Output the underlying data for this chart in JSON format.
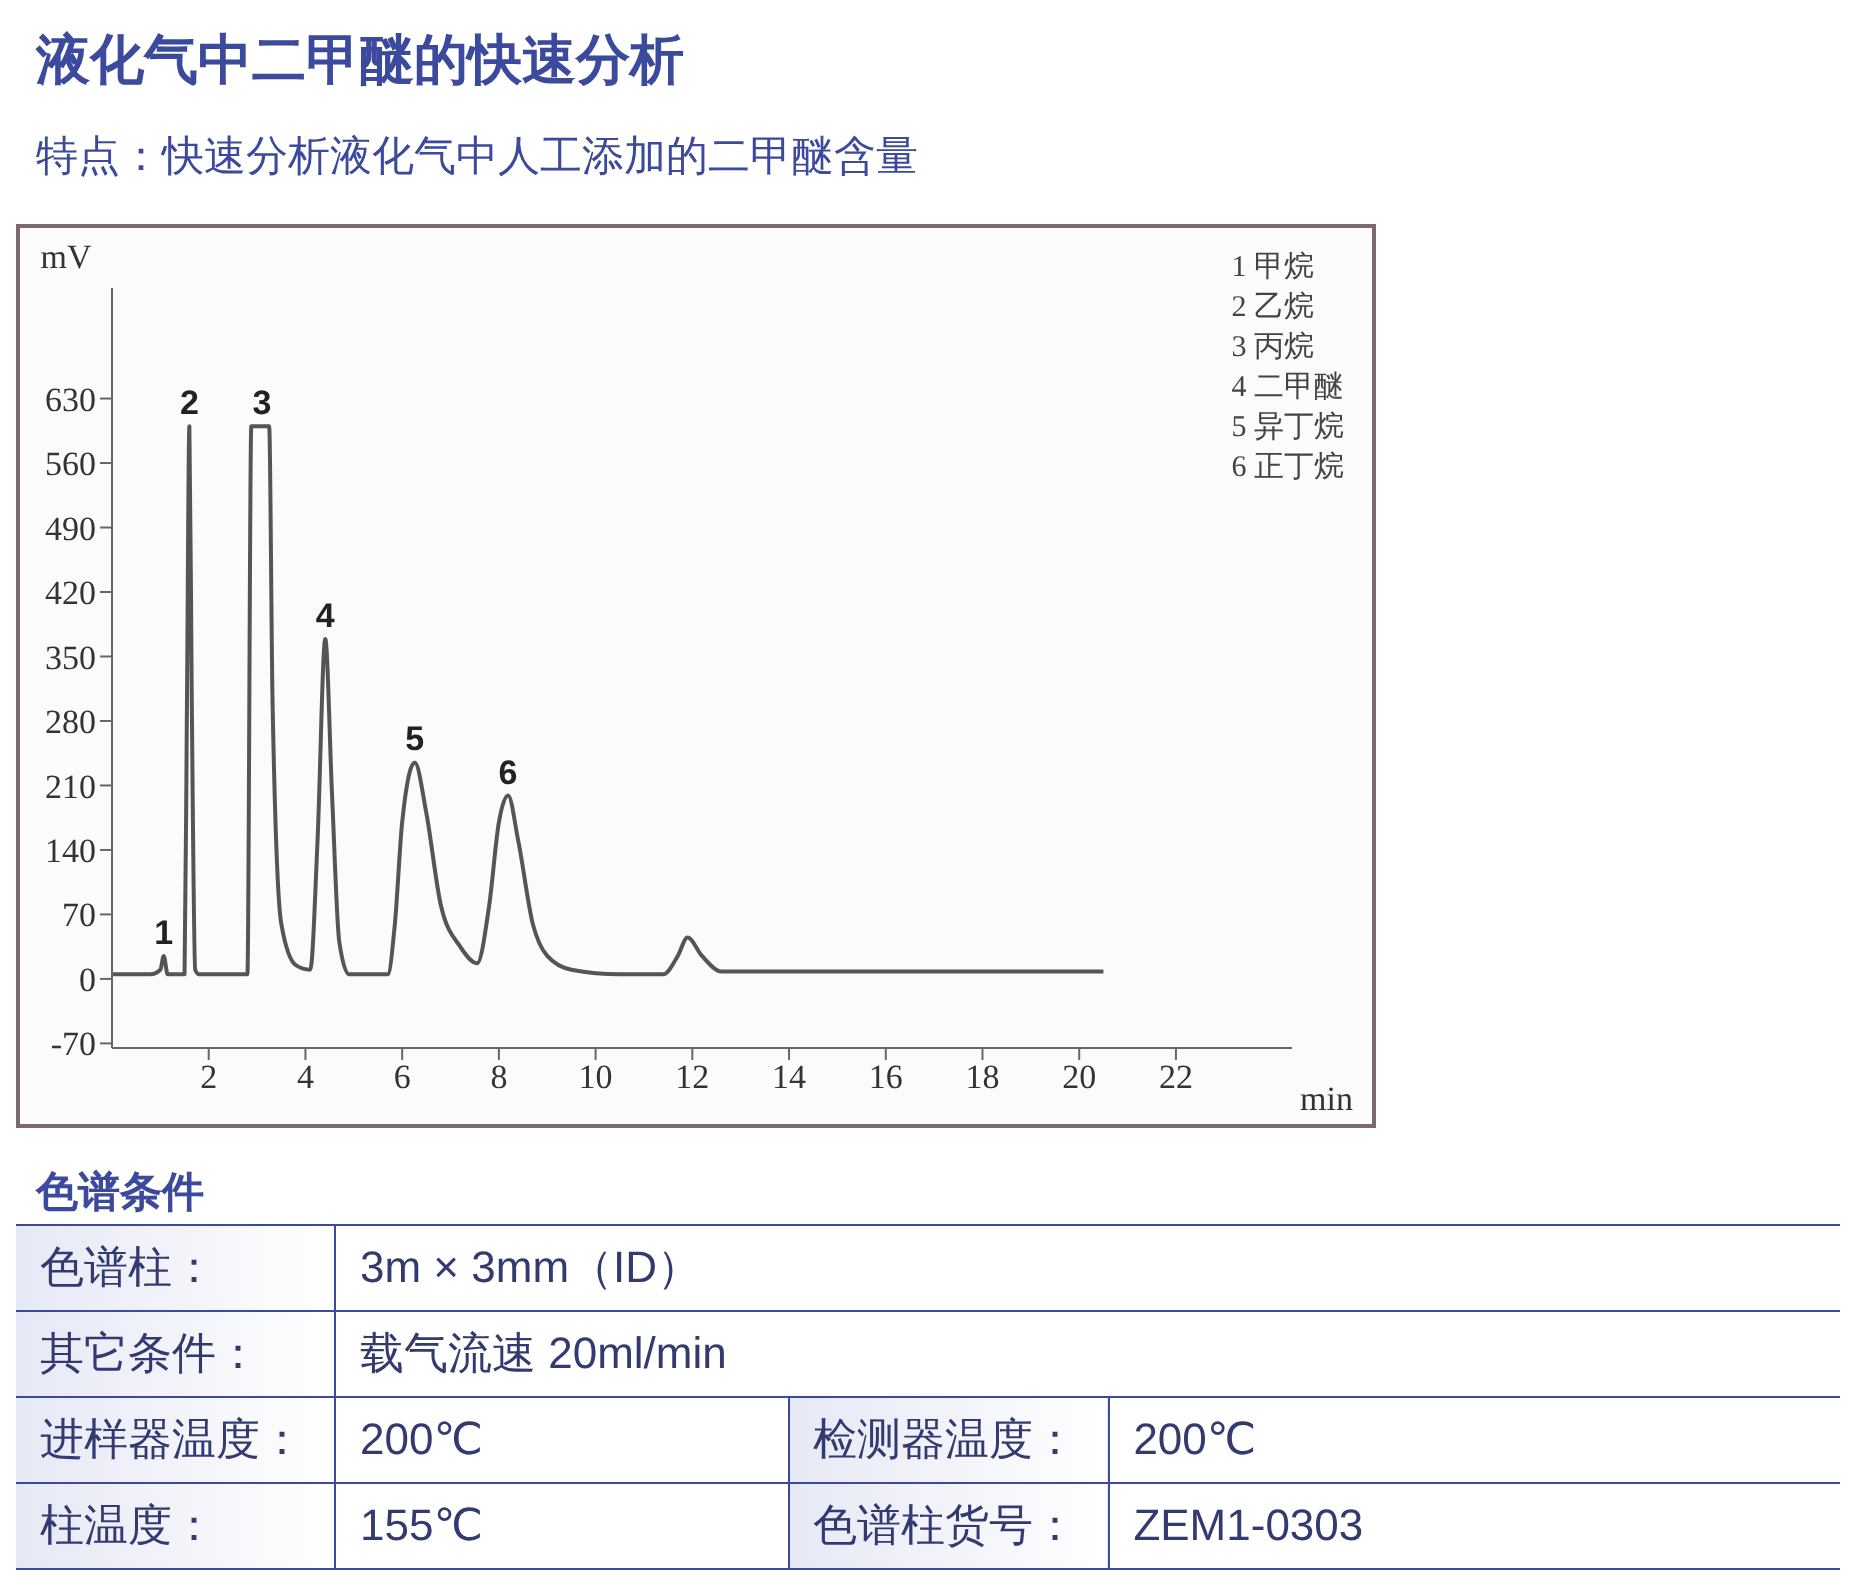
{
  "chart_data": {
    "type": "line",
    "title": "液化气中二甲醚的快速分析",
    "subtitle": "特点：快速分析液化气中人工添加的二甲醚含量",
    "xlabel": "min",
    "ylabel": "mV",
    "x": [
      0,
      0.8,
      1.0,
      1.07,
      1.15,
      1.3,
      1.5,
      1.55,
      1.6,
      1.65,
      1.72,
      1.8,
      2.8,
      2.88,
      2.95,
      3.25,
      3.32,
      3.5,
      3.8,
      4.1,
      4.25,
      4.41,
      4.55,
      4.7,
      4.9,
      5.7,
      5.85,
      6.0,
      6.26,
      6.5,
      6.8,
      7.2,
      7.55,
      7.8,
      8.0,
      8.19,
      8.4,
      8.7,
      9.0,
      9.5,
      10.5,
      11.4,
      11.7,
      11.9,
      12.2,
      12.6,
      14,
      19.5,
      20.5
    ],
    "series": [
      {
        "color": "#555555",
        "values": [
          5,
          5,
          10,
          25,
          5,
          5,
          5,
          300,
          600,
          300,
          10,
          5,
          5,
          600,
          600,
          600,
          300,
          60,
          15,
          10,
          150,
          369,
          200,
          40,
          5,
          5,
          60,
          170,
          235,
          180,
          80,
          35,
          17,
          80,
          170,
          199,
          150,
          60,
          25,
          10,
          5,
          5,
          25,
          45,
          25,
          8,
          8,
          8,
          8
        ]
      }
    ],
    "xlim": [
      0,
      24.4
    ],
    "xticks": [
      2,
      4,
      6,
      8,
      10,
      12,
      14,
      16,
      18,
      20,
      22
    ],
    "ylim": [
      -75,
      750
    ],
    "yticks": [
      -70,
      0,
      70,
      140,
      210,
      280,
      350,
      420,
      490,
      560,
      630
    ],
    "marker": "none",
    "line_style": "solid",
    "annotations": [
      {
        "text": "1",
        "x": 1.07,
        "y": 25
      },
      {
        "text": "2",
        "x": 1.6,
        "y": 600
      },
      {
        "text": "3",
        "x": 3.1,
        "y": 600
      },
      {
        "text": "4",
        "x": 4.41,
        "y": 369
      },
      {
        "text": "5",
        "x": 6.26,
        "y": 235
      },
      {
        "text": "6",
        "x": 8.19,
        "y": 199
      },
      "1 甲烷",
      "2 乙烷",
      "3 丙烷",
      "4 二甲醚",
      "5 异丁烷",
      "6 正丁烷",
      "色谱条件",
      "色谱柱：",
      "3m × 3mm（ID）",
      "其它条件：",
      "载气流速 20ml/min",
      "进样器温度：",
      "200℃",
      "检测器温度：",
      "200℃",
      "柱温度：",
      "155℃",
      "色谱柱货号：",
      "ZEM1-0303"
    ]
  }
}
